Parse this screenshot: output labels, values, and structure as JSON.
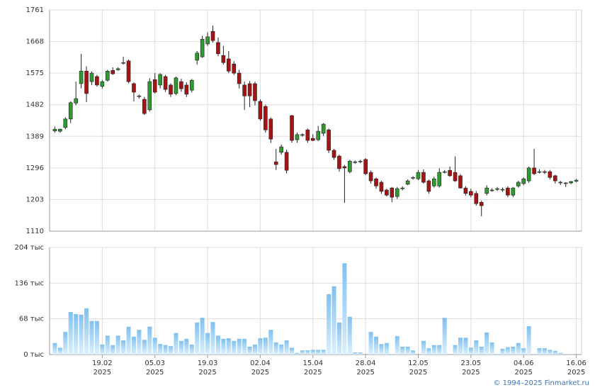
{
  "chart_data": [
    {
      "type": "candlestick",
      "up_color": "#2f9a2f",
      "down_color": "#a51414",
      "ylim": [
        1110,
        1761
      ],
      "yticks": [
        1110,
        1203,
        1296,
        1389,
        1482,
        1575,
        1668,
        1761
      ],
      "grid": true,
      "open": [
        1405,
        1404,
        1415,
        1440,
        1487,
        1544,
        1581,
        1550,
        1565,
        1536,
        1554,
        1583,
        1585,
        1604,
        1611,
        1544,
        1506,
        1498,
        1467,
        1556,
        1540,
        1565,
        1540,
        1515,
        1550,
        1540,
        1525,
        1613,
        1623,
        1661,
        1698,
        1665,
        1627,
        1617,
        1602,
        1575,
        1540,
        1544,
        1544,
        1492,
        1477,
        1440,
        1314,
        1342,
        1342,
        1450,
        1379,
        1392,
        1408,
        1383,
        1379,
        1398,
        1408,
        1348,
        1331,
        1300,
        1285,
        1312,
        1314,
        1321,
        1283,
        1264,
        1254,
        1231,
        1237,
        1212,
        1236,
        1248,
        1267,
        1264,
        1283,
        1258,
        1243,
        1243,
        1284,
        1289,
        1283,
        1273,
        1237,
        1227,
        1221,
        1195,
        1221,
        1230,
        1234,
        1232,
        1237,
        1216,
        1243,
        1250,
        1258,
        1296,
        1283,
        1285,
        1285,
        1273,
        1252,
        1250,
        1252,
        1257
      ],
      "high": [
        1418,
        1412,
        1445,
        1492,
        1550,
        1632,
        1595,
        1580,
        1570,
        1555,
        1585,
        1592,
        1592,
        1623,
        1615,
        1548,
        1512,
        1505,
        1560,
        1575,
        1575,
        1570,
        1545,
        1565,
        1558,
        1548,
        1558,
        1640,
        1685,
        1695,
        1715,
        1680,
        1655,
        1640,
        1610,
        1585,
        1550,
        1552,
        1550,
        1498,
        1482,
        1445,
        1352,
        1365,
        1350,
        1452,
        1400,
        1398,
        1412,
        1395,
        1420,
        1428,
        1412,
        1352,
        1335,
        1305,
        1320,
        1318,
        1320,
        1325,
        1288,
        1268,
        1258,
        1235,
        1240,
        1240,
        1242,
        1262,
        1272,
        1290,
        1292,
        1262,
        1270,
        1295,
        1290,
        1300,
        1330,
        1278,
        1242,
        1235,
        1228,
        1200,
        1245,
        1236,
        1240,
        1238,
        1242,
        1240,
        1258,
        1268,
        1300,
        1352,
        1292,
        1290,
        1290,
        1276,
        1258,
        1254,
        1258,
        1264
      ],
      "low": [
        1400,
        1400,
        1410,
        1428,
        1480,
        1530,
        1490,
        1540,
        1535,
        1530,
        1550,
        1570,
        1582,
        1600,
        1545,
        1492,
        1500,
        1452,
        1462,
        1515,
        1530,
        1520,
        1505,
        1510,
        1520,
        1505,
        1518,
        1600,
        1620,
        1655,
        1665,
        1625,
        1600,
        1575,
        1570,
        1530,
        1467,
        1475,
        1480,
        1435,
        1400,
        1370,
        1290,
        1335,
        1280,
        1370,
        1370,
        1388,
        1370,
        1375,
        1375,
        1390,
        1340,
        1320,
        1285,
        1193,
        1280,
        1308,
        1310,
        1275,
        1250,
        1235,
        1220,
        1212,
        1195,
        1205,
        1230,
        1245,
        1262,
        1260,
        1250,
        1220,
        1238,
        1238,
        1280,
        1270,
        1255,
        1235,
        1215,
        1210,
        1185,
        1154,
        1215,
        1226,
        1228,
        1226,
        1210,
        1210,
        1238,
        1245,
        1252,
        1275,
        1280,
        1278,
        1262,
        1250,
        1246,
        1240,
        1248,
        1254
      ],
      "close": [
        1410,
        1410,
        1440,
        1488,
        1500,
        1581,
        1515,
        1575,
        1540,
        1550,
        1581,
        1573,
        1588,
        1606,
        1550,
        1519,
        1508,
        1456,
        1550,
        1519,
        1571,
        1527,
        1513,
        1561,
        1529,
        1513,
        1554,
        1634,
        1675,
        1682,
        1671,
        1632,
        1606,
        1581,
        1575,
        1544,
        1508,
        1508,
        1494,
        1440,
        1408,
        1381,
        1306,
        1358,
        1289,
        1377,
        1394,
        1394,
        1377,
        1377,
        1404,
        1425,
        1348,
        1327,
        1294,
        1296,
        1316,
        1314,
        1316,
        1279,
        1258,
        1243,
        1227,
        1216,
        1210,
        1235,
        1237,
        1258,
        1268,
        1283,
        1254,
        1227,
        1264,
        1283,
        1285,
        1273,
        1258,
        1237,
        1221,
        1216,
        1191,
        1185,
        1237,
        1231,
        1235,
        1233,
        1216,
        1237,
        1254,
        1264,
        1296,
        1279,
        1285,
        1283,
        1268,
        1258,
        1254,
        1252,
        1256,
        1260
      ]
    },
    {
      "type": "bar",
      "color": "#8ec8f2",
      "ylim": [
        0,
        204
      ],
      "yticks": [
        {
          "value": 0,
          "label": "0 тыс"
        },
        {
          "value": 68,
          "label": "68 тыс"
        },
        {
          "value": 136,
          "label": "136 тыс"
        },
        {
          "value": 204,
          "label": "204 тыс"
        }
      ],
      "grid": true,
      "xlim": [
        -1,
        100
      ],
      "xticks": [
        {
          "value": 9,
          "label": "19.02\n2025"
        },
        {
          "value": 19,
          "label": "05.03\n2025"
        },
        {
          "value": 29,
          "label": "19.03\n2025"
        },
        {
          "value": 39,
          "label": "02.04\n2025"
        },
        {
          "value": 49,
          "label": "15.04\n2025"
        },
        {
          "value": 59,
          "label": "28.04\n2025"
        },
        {
          "value": 69,
          "label": "12.05\n2025"
        },
        {
          "value": 79,
          "label": "23.05\n2025"
        },
        {
          "value": 89,
          "label": "04.06\n2025"
        },
        {
          "value": 99,
          "label": "16.06\n2025"
        }
      ],
      "values": [
        22,
        13,
        43,
        81,
        77,
        76,
        88,
        64,
        64,
        19,
        36,
        18,
        36,
        27,
        53,
        34,
        47,
        28,
        53,
        32,
        20,
        18,
        16,
        41,
        26,
        30,
        19,
        61,
        70,
        41,
        62,
        36,
        30,
        31,
        26,
        30,
        30,
        15,
        19,
        31,
        32,
        47,
        23,
        19,
        27,
        13,
        3,
        8,
        8,
        9,
        9,
        9,
        115,
        130,
        61,
        174,
        72,
        4,
        4,
        0,
        43,
        34,
        20,
        22,
        1,
        35,
        15,
        15,
        8,
        0,
        26,
        12,
        18,
        18,
        70,
        0,
        18,
        32,
        32,
        13,
        27,
        15,
        42,
        23,
        1,
        11,
        14,
        15,
        22,
        12,
        54,
        1,
        12,
        12,
        9,
        7,
        3,
        1,
        1,
        0
      ]
    }
  ],
  "footer": "© 1994–2025 Finmarket.ru"
}
